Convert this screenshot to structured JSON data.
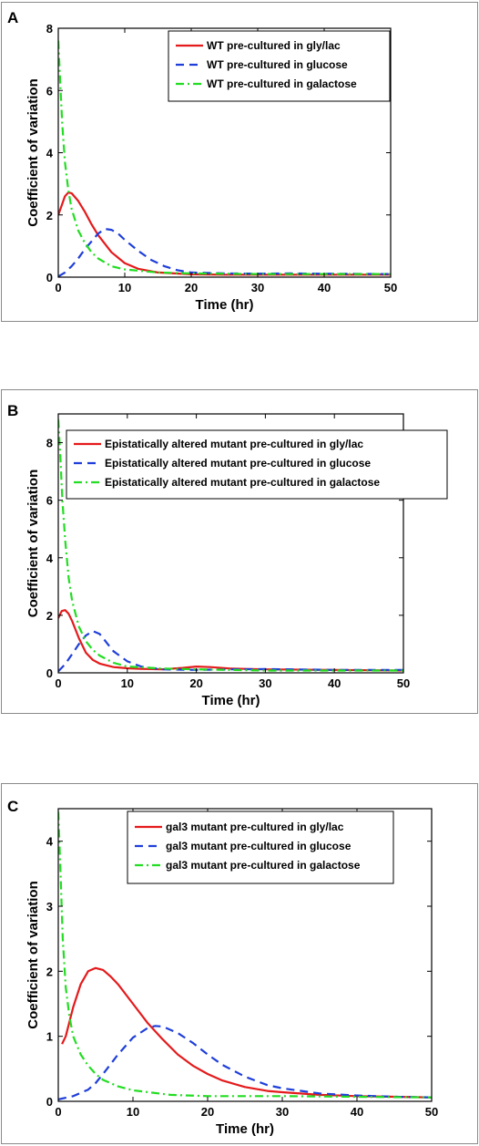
{
  "chart_data": [
    {
      "type": "line",
      "panel": "A",
      "xlabel": "Time (hr)",
      "ylabel": "Coefficient of variation",
      "xlim": [
        0,
        50
      ],
      "ylim": [
        0,
        8
      ],
      "xticks": [
        0,
        10,
        20,
        30,
        40,
        50
      ],
      "yticks": [
        0,
        2,
        4,
        6,
        8
      ],
      "legend_position": "top-right",
      "series": [
        {
          "name": "WT pre-cultured in gly/lac",
          "color": "#e41a1c",
          "style": "solid",
          "x": [
            0,
            0.5,
            1,
            1.5,
            2,
            3,
            4,
            5,
            6,
            8,
            10,
            12,
            15,
            20,
            25,
            30,
            40,
            50
          ],
          "y": [
            2.0,
            2.3,
            2.6,
            2.72,
            2.7,
            2.45,
            2.1,
            1.7,
            1.35,
            0.8,
            0.45,
            0.27,
            0.15,
            0.09,
            0.08,
            0.08,
            0.08,
            0.08
          ]
        },
        {
          "name": "WT pre-cultured in glucose",
          "color": "#1f3fd9",
          "style": "dashed",
          "x": [
            0,
            1,
            2,
            3,
            4,
            5,
            6,
            7,
            8,
            9,
            10,
            12,
            14,
            16,
            18,
            20,
            25,
            30,
            35,
            40,
            50
          ],
          "y": [
            0.02,
            0.15,
            0.35,
            0.6,
            0.9,
            1.15,
            1.4,
            1.55,
            1.52,
            1.4,
            1.2,
            0.85,
            0.55,
            0.35,
            0.22,
            0.15,
            0.12,
            0.11,
            0.12,
            0.11,
            0.1
          ]
        },
        {
          "name": "WT pre-cultured in galactose",
          "color": "#22dd22",
          "style": "dashdot",
          "x": [
            0,
            0.3,
            0.6,
            1,
            1.5,
            2,
            3,
            4,
            5,
            6,
            8,
            10,
            15,
            20,
            30,
            40,
            50
          ],
          "y": [
            7.6,
            6.2,
            4.9,
            3.7,
            2.8,
            2.2,
            1.5,
            1.1,
            0.8,
            0.6,
            0.35,
            0.25,
            0.15,
            0.12,
            0.1,
            0.1,
            0.1
          ]
        }
      ]
    },
    {
      "type": "line",
      "panel": "B",
      "xlabel": "Time (hr)",
      "ylabel": "Coefficient of variation",
      "xlim": [
        0,
        50
      ],
      "ylim": [
        0,
        9
      ],
      "xticks": [
        0,
        10,
        20,
        30,
        40,
        50
      ],
      "yticks": [
        0,
        2,
        4,
        6,
        8
      ],
      "legend_position": "top-right",
      "series": [
        {
          "name": "Epistatically altered mutant pre-cultured in gly/lac",
          "color": "#e41a1c",
          "style": "solid",
          "x": [
            0,
            0.5,
            1,
            1.5,
            2,
            3,
            4,
            5,
            6,
            8,
            10,
            12,
            15,
            18,
            20,
            22,
            25,
            30,
            40,
            50
          ],
          "y": [
            1.9,
            2.15,
            2.18,
            2.05,
            1.8,
            1.2,
            0.7,
            0.45,
            0.32,
            0.2,
            0.16,
            0.14,
            0.12,
            0.17,
            0.22,
            0.2,
            0.15,
            0.12,
            0.1,
            0.08
          ]
        },
        {
          "name": "Epistatically altered mutant pre-cultured in glucose",
          "color": "#1f3fd9",
          "style": "dashed",
          "x": [
            0,
            1,
            2,
            3,
            4,
            5,
            6,
            7,
            8,
            10,
            12,
            15,
            20,
            25,
            30,
            40,
            50
          ],
          "y": [
            0.05,
            0.3,
            0.65,
            1.0,
            1.3,
            1.45,
            1.35,
            1.05,
            0.75,
            0.4,
            0.22,
            0.12,
            0.1,
            0.12,
            0.13,
            0.1,
            0.1
          ]
        },
        {
          "name": "Epistatically altered mutant pre-cultured in galactose",
          "color": "#22dd22",
          "style": "dashdot",
          "x": [
            0,
            0.3,
            0.6,
            1,
            1.5,
            2,
            3,
            4,
            5,
            6,
            8,
            10,
            15,
            20,
            30,
            40,
            50
          ],
          "y": [
            8.8,
            7.5,
            6.0,
            4.6,
            3.3,
            2.5,
            1.6,
            1.1,
            0.8,
            0.6,
            0.35,
            0.22,
            0.15,
            0.12,
            0.08,
            0.08,
            0.08
          ]
        }
      ]
    },
    {
      "type": "line",
      "panel": "C",
      "xlabel": "Time (hr)",
      "ylabel": "Coefficient of variation",
      "xlim": [
        0,
        50
      ],
      "ylim": [
        0,
        4.5
      ],
      "xticks": [
        0,
        10,
        20,
        30,
        40,
        50
      ],
      "yticks": [
        0,
        1,
        2,
        3,
        4
      ],
      "legend_position": "top-right",
      "series": [
        {
          "name": "gal3 mutant pre-cultured in gly/lac",
          "color": "#e41a1c",
          "style": "solid",
          "x": [
            0.5,
            1,
            2,
            3,
            4,
            5,
            6,
            7,
            8,
            10,
            12,
            14,
            16,
            18,
            20,
            22,
            25,
            28,
            30,
            35,
            40,
            45,
            50
          ],
          "y": [
            0.88,
            1.0,
            1.45,
            1.8,
            2.0,
            2.05,
            2.02,
            1.92,
            1.8,
            1.5,
            1.2,
            0.95,
            0.72,
            0.55,
            0.42,
            0.32,
            0.22,
            0.16,
            0.14,
            0.1,
            0.08,
            0.07,
            0.06
          ]
        },
        {
          "name": "gal3 mutant pre-cultured in glucose",
          "color": "#1f3fd9",
          "style": "dashed",
          "x": [
            0,
            2,
            4,
            5,
            6,
            8,
            10,
            12,
            13,
            14,
            16,
            18,
            20,
            22,
            25,
            28,
            30,
            35,
            40,
            45,
            50
          ],
          "y": [
            0.03,
            0.08,
            0.18,
            0.28,
            0.42,
            0.72,
            0.98,
            1.13,
            1.16,
            1.15,
            1.05,
            0.9,
            0.72,
            0.56,
            0.38,
            0.25,
            0.2,
            0.12,
            0.09,
            0.07,
            0.06
          ]
        },
        {
          "name": "gal3 mutant pre-cultured in galactose",
          "color": "#22dd22",
          "style": "dashdot",
          "x": [
            0,
            0.3,
            0.6,
            1,
            1.5,
            2,
            3,
            4,
            5,
            6,
            8,
            10,
            15,
            20,
            25,
            30,
            40,
            50
          ],
          "y": [
            4.45,
            3.5,
            2.5,
            1.75,
            1.3,
            1.0,
            0.72,
            0.55,
            0.42,
            0.33,
            0.23,
            0.17,
            0.1,
            0.08,
            0.08,
            0.08,
            0.07,
            0.06
          ]
        }
      ]
    }
  ]
}
